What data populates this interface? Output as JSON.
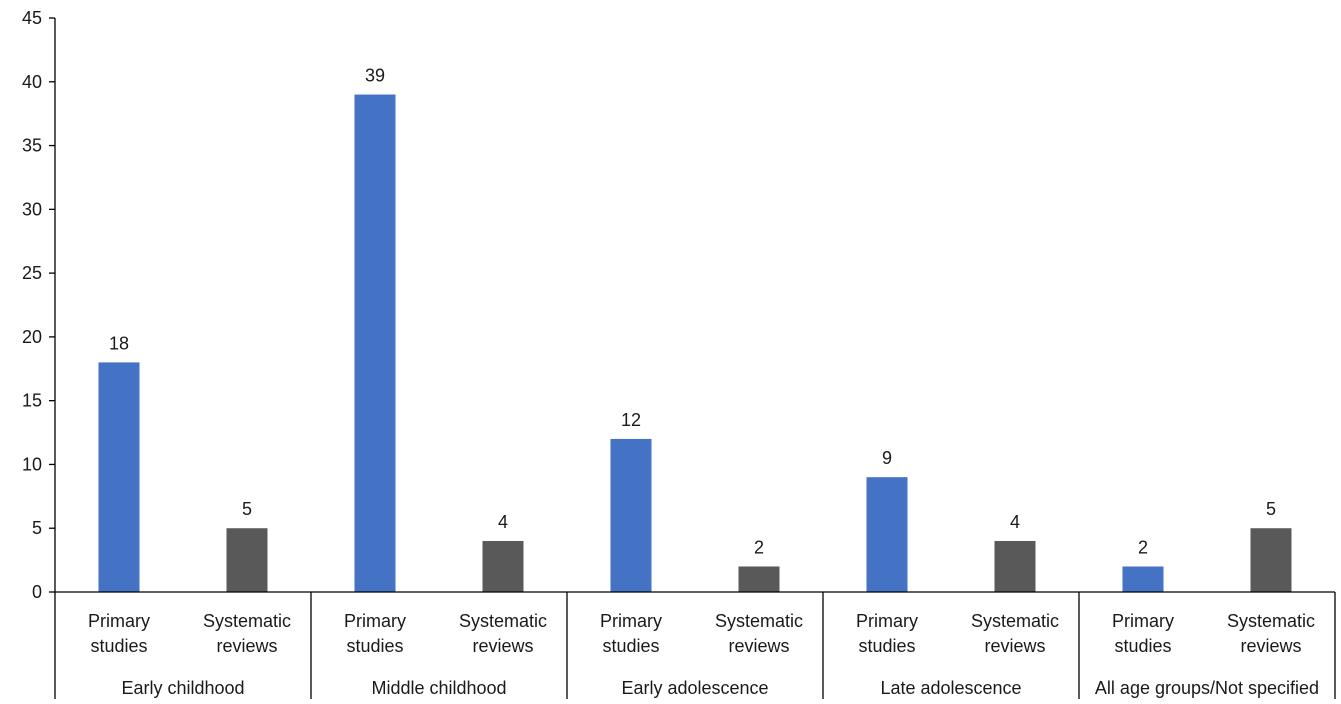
{
  "chart_data": {
    "type": "bar",
    "title": "",
    "xlabel": "",
    "ylabel": "",
    "ylim": [
      0,
      45
    ],
    "yticks": [
      0,
      5,
      10,
      15,
      20,
      25,
      30,
      35,
      40,
      45
    ],
    "grid": false,
    "legend": "none",
    "groups": [
      "Early childhood",
      "Middle childhood",
      "Early adolescence",
      "Late adolescence",
      "All age groups/Not specified"
    ],
    "subcategories": [
      {
        "line1": "Primary",
        "line2": "studies"
      },
      {
        "line1": "Systematic",
        "line2": "reviews"
      }
    ],
    "series": [
      {
        "values": [
          18,
          39,
          12,
          9,
          2
        ],
        "color": "#4472C4"
      },
      {
        "values": [
          5,
          4,
          2,
          4,
          5
        ],
        "color": "#595959"
      }
    ]
  }
}
